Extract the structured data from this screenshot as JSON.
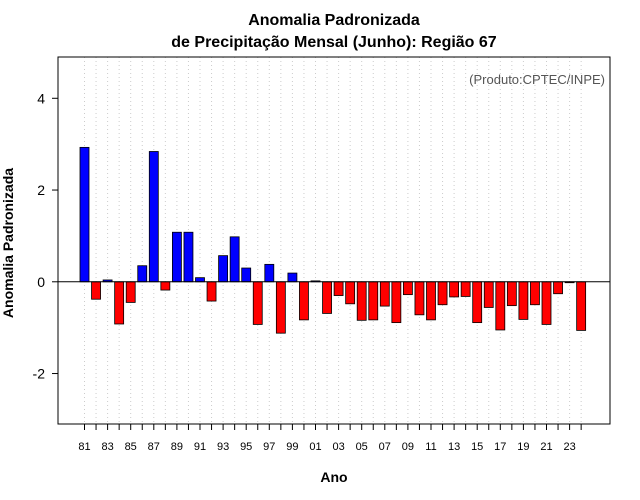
{
  "chart_data": {
    "type": "bar",
    "title_line1": "Anomalia Padronizada",
    "title_line2": "de Precipitação Mensal (Junho): Região 67",
    "xlabel": "Ano",
    "ylabel": "Anomalia Padronizada",
    "annotation": "(Produto:CPTEC/INPE)",
    "ylim": [
      -3.1,
      4.9
    ],
    "yticks": [
      4,
      2,
      0,
      -2
    ],
    "xtick_labels": [
      "81",
      "83",
      "85",
      "87",
      "89",
      "91",
      "93",
      "95",
      "97",
      "99",
      "01",
      "03",
      "05",
      "07",
      "09",
      "11",
      "13",
      "15",
      "17",
      "19",
      "21",
      "23"
    ],
    "categories": [
      "1981",
      "1982",
      "1983",
      "1984",
      "1985",
      "1986",
      "1987",
      "1988",
      "1989",
      "1990",
      "1991",
      "1992",
      "1993",
      "1994",
      "1995",
      "1996",
      "1997",
      "1998",
      "1999",
      "2000",
      "2001",
      "2002",
      "2003",
      "2004",
      "2005",
      "2006",
      "2007",
      "2008",
      "2009",
      "2010",
      "2011",
      "2012",
      "2013",
      "2014",
      "2015",
      "2016",
      "2017",
      "2018",
      "2019",
      "2020",
      "2021",
      "2022",
      "2023",
      "2024"
    ],
    "values": [
      2.93,
      -0.38,
      0.04,
      -0.92,
      -0.45,
      0.35,
      2.84,
      -0.18,
      1.08,
      1.08,
      0.09,
      -0.42,
      0.57,
      0.98,
      0.3,
      -0.93,
      0.38,
      -1.12,
      0.19,
      -0.83,
      0.02,
      -0.69,
      -0.3,
      -0.48,
      -0.84,
      -0.83,
      -0.53,
      -0.89,
      -0.28,
      -0.72,
      -0.83,
      -0.5,
      -0.33,
      -0.32,
      -0.89,
      -0.56,
      -1.05,
      -0.52,
      -0.82,
      -0.5,
      -0.93,
      -0.26,
      -0.02,
      -1.06
    ],
    "grid": "vertical-dotted",
    "colors": {
      "positive": "#0000ff",
      "negative": "#ff0000",
      "frame": "#000000",
      "grid": "#cccccc"
    }
  }
}
